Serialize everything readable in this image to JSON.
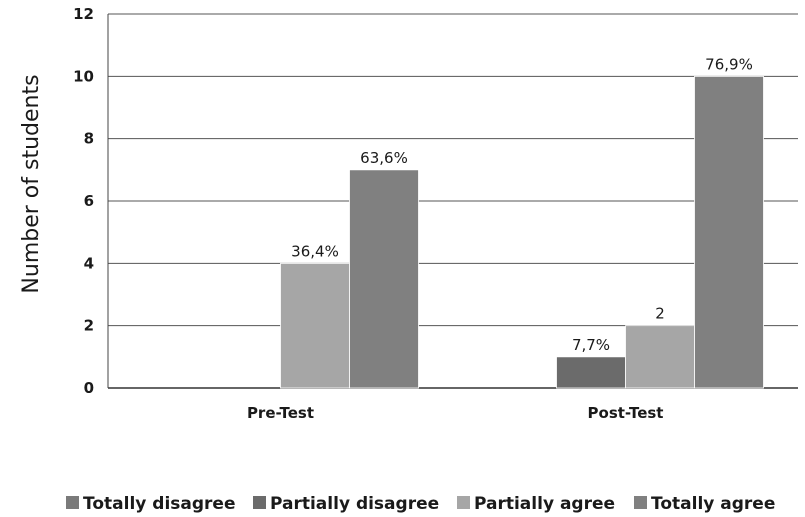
{
  "chart_data": {
    "type": "bar",
    "title": "",
    "xlabel": "",
    "ylabel": "Number of students",
    "ylim": [
      0,
      12
    ],
    "yticks": [
      0,
      2,
      4,
      6,
      8,
      10,
      12
    ],
    "grid": true,
    "legend_position": "bottom",
    "categories": [
      "Pre-Test",
      "Post-Test"
    ],
    "series": [
      {
        "name": "Totally disagree",
        "color": "#7a7a7a",
        "values": [
          0,
          0
        ],
        "labels": [
          "",
          ""
        ]
      },
      {
        "name": "Partially disagree",
        "color": "#6b6b6b",
        "values": [
          0,
          1
        ],
        "labels": [
          "",
          "7,7%"
        ]
      },
      {
        "name": "Partially agree",
        "color": "#a6a6a6",
        "values": [
          4,
          2
        ],
        "labels": [
          "36,4%",
          "2"
        ]
      },
      {
        "name": "Totally agree",
        "color": "#808080",
        "values": [
          7,
          10
        ],
        "labels": [
          "63,6%",
          "76,9%"
        ]
      }
    ]
  }
}
